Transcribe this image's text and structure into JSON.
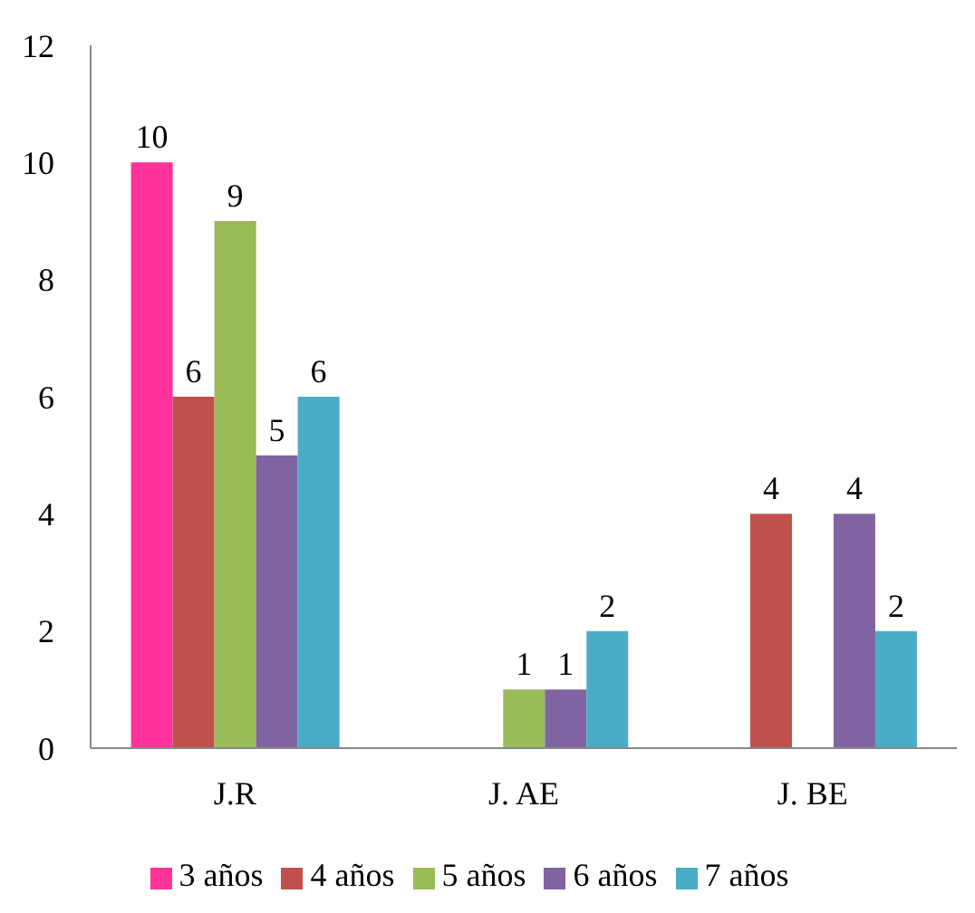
{
  "chart_data": {
    "type": "bar",
    "categories": [
      "J.R",
      "J. AE",
      "J. BE"
    ],
    "series": [
      {
        "name": "3 años",
        "color": "#ff3399",
        "values": [
          10,
          null,
          null
        ]
      },
      {
        "name": "4 años",
        "color": "#c0504d",
        "values": [
          6,
          null,
          4
        ]
      },
      {
        "name": "5 años",
        "color": "#9bbb59",
        "values": [
          9,
          1,
          null
        ]
      },
      {
        "name": "6 años",
        "color": "#8064a2",
        "values": [
          5,
          1,
          4
        ]
      },
      {
        "name": "7 años",
        "color": "#4bacc6",
        "values": [
          6,
          2,
          2
        ]
      }
    ],
    "ylim": [
      0,
      12
    ],
    "yticks": [
      0,
      2,
      4,
      6,
      8,
      10,
      12
    ],
    "grid": false,
    "legend": "bottom",
    "data_labels": true
  }
}
